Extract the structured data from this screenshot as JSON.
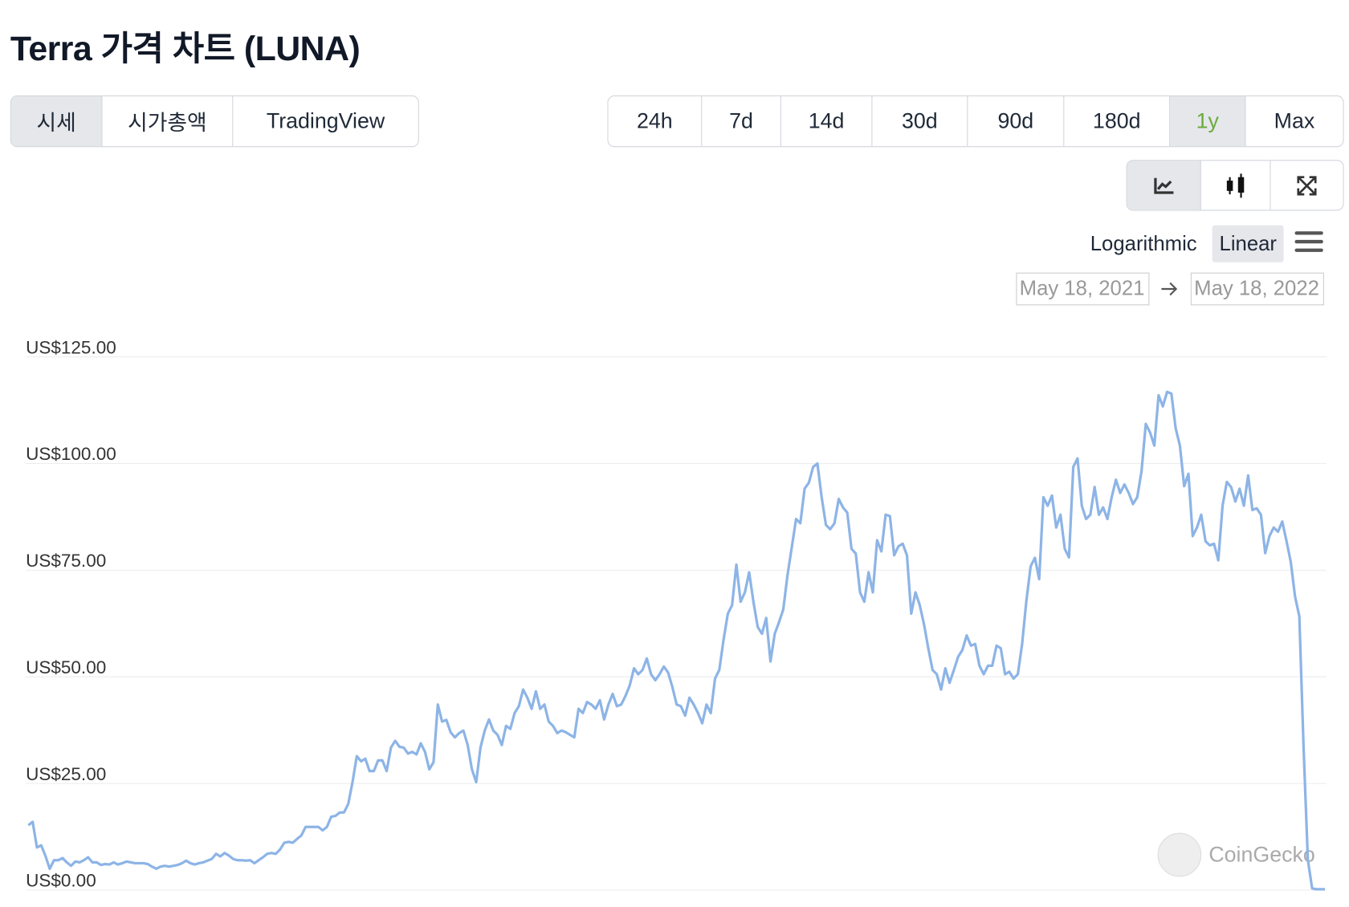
{
  "header": {
    "title": "Terra 가격 차트 (LUNA)"
  },
  "tabs": [
    "시세",
    "시가총액",
    "TradingView"
  ],
  "active_tab": 0,
  "ranges": [
    "24h",
    "7d",
    "14d",
    "30d",
    "90d",
    "180d",
    "1y",
    "Max"
  ],
  "active_range": 6,
  "scale_options": [
    "Logarithmic",
    "Linear"
  ],
  "active_scale": 1,
  "date_from": "May 18, 2021",
  "date_to": "May 18, 2022",
  "watermark": "CoinGecko",
  "chart_data": {
    "type": "line",
    "series": [
      {
        "name": "LUNA",
        "color": "#8db4e6",
        "values": [
          15.2,
          16,
          10,
          10.5,
          8,
          5,
          7,
          7,
          7.5,
          6.5,
          5.7,
          6.7,
          6.5,
          7,
          7.7,
          6.5,
          6.5,
          5.9,
          6.1,
          6,
          6.5,
          6,
          6.3,
          6.7,
          6.5,
          6.3,
          6.3,
          6.3,
          6.1,
          5.5,
          5,
          5.5,
          5.7,
          5.5,
          5.7,
          5.9,
          6.3,
          6.9,
          6.3,
          6,
          6.3,
          6.5,
          6.9,
          7.3,
          8.5,
          7.9,
          8.7,
          8.1,
          7.3,
          7,
          7,
          6.9,
          7,
          6.3,
          7,
          7.7,
          8.5,
          8.7,
          8.5,
          9.5,
          11.1,
          11.3,
          11.1,
          12,
          12.8,
          14.8,
          14.8,
          14.8,
          14.8,
          14,
          14.8,
          17.2,
          17.4,
          18.2,
          18.2,
          20.2,
          25.3,
          31.4,
          30.2,
          30.8,
          27.9,
          27.9,
          30.4,
          30.4,
          27.9,
          33.4,
          35,
          33.6,
          33.4,
          32,
          32.4,
          31.8,
          34.4,
          32.4,
          28.3,
          30,
          43.5,
          39.5,
          39.9,
          37,
          35.8,
          36.8,
          37.4,
          34,
          28.3,
          25.3,
          33.4,
          37.4,
          40,
          37.4,
          36.4,
          34,
          38.5,
          37.8,
          41.5,
          43.1,
          47,
          45.1,
          42.5,
          46.6,
          42.5,
          43.5,
          39.5,
          38.5,
          36.8,
          37.4,
          37,
          36.4,
          35.8,
          42.5,
          41.5,
          44.1,
          43.5,
          42.5,
          44.5,
          40,
          43.5,
          46,
          43.1,
          43.5,
          45.5,
          48,
          52,
          50.6,
          51.6,
          54.3,
          50.6,
          49.2,
          50.6,
          52.4,
          51,
          47.6,
          43.5,
          43.1,
          40.9,
          45.1,
          43.5,
          41.5,
          39.1,
          43.5,
          41.5,
          49.6,
          51.6,
          58.7,
          64.8,
          66.8,
          76.3,
          67.6,
          69.8,
          74.5,
          67.6,
          61.7,
          60.1,
          63.8,
          53.6,
          60.1,
          62.8,
          65.8,
          73.9,
          80.4,
          87,
          86,
          94.1,
          95.5,
          99.2,
          100,
          92.1,
          85.6,
          84.6,
          86,
          91.7,
          89.7,
          88.5,
          80,
          78.9,
          69.8,
          67.6,
          74.5,
          69.8,
          82,
          79.4,
          88,
          87.7,
          78.5,
          80.6,
          81.2,
          78.5,
          64.8,
          69.8,
          66.8,
          62.3,
          56.7,
          51.6,
          50.6,
          47,
          52,
          48.6,
          51.6,
          54.7,
          56.3,
          59.7,
          57.3,
          57.7,
          52.6,
          50.6,
          52.6,
          52.6,
          57.3,
          56.7,
          50.6,
          51.2,
          49.6,
          50.6,
          57.7,
          67.8,
          75.9,
          77.9,
          72.9,
          92.1,
          90.1,
          92.5,
          85,
          88,
          80,
          78,
          99.2,
          101.2,
          90.1,
          87,
          88,
          94.5,
          88,
          89.7,
          87,
          92.1,
          96.2,
          93.1,
          95.1,
          93.1,
          90.5,
          92.1,
          98.2,
          109.3,
          107.3,
          104.2,
          116,
          113.4,
          116.8,
          116.4,
          108.3,
          104.2,
          94.7,
          97.6,
          83,
          85,
          88,
          81.8,
          80.8,
          81.2,
          77.3,
          90.1,
          95.7,
          94.5,
          91.1,
          94.1,
          90.1,
          97.2,
          89.1,
          89.5,
          88,
          79,
          83,
          85,
          84,
          86.4,
          81.8,
          76.9,
          68.8,
          64.2,
          33.4,
          7.1,
          0.4,
          0.2,
          0.2,
          0.2
        ]
      }
    ],
    "ylim": [
      0,
      125
    ],
    "yticks": [
      {
        "value": 0,
        "label": "US$0.00"
      },
      {
        "value": 25,
        "label": "US$25.00"
      },
      {
        "value": 50,
        "label": "US$50.00"
      },
      {
        "value": 75,
        "label": "US$75.00"
      },
      {
        "value": 100,
        "label": "US$100.00"
      },
      {
        "value": 125,
        "label": "US$125.00"
      }
    ],
    "grid": true
  }
}
